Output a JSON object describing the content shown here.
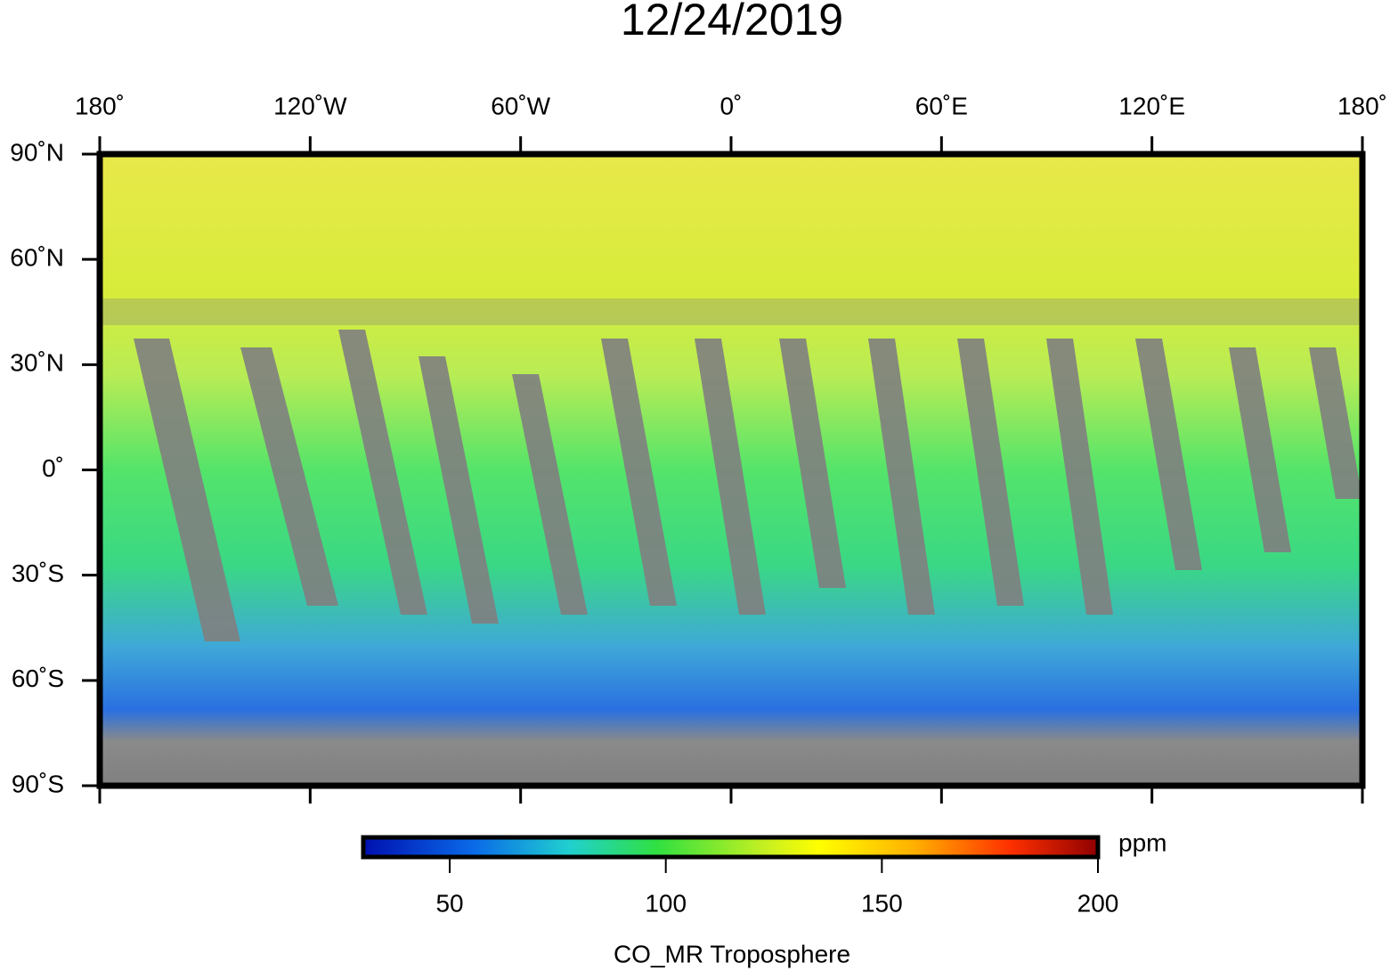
{
  "title": "12/24/2019",
  "map": {
    "xlim": [
      -180,
      180
    ],
    "ylim": [
      -90,
      90
    ],
    "xticks": [
      {
        "value": -180,
        "label": "180˚"
      },
      {
        "value": -120,
        "label": "120˚W"
      },
      {
        "value": -60,
        "label": "60˚W"
      },
      {
        "value": 0,
        "label": "0˚"
      },
      {
        "value": 60,
        "label": "60˚E"
      },
      {
        "value": 120,
        "label": "120˚E"
      },
      {
        "value": 180,
        "label": "180˚"
      }
    ],
    "yticks": [
      {
        "value": 90,
        "label": "90˚N"
      },
      {
        "value": 60,
        "label": "60˚N"
      },
      {
        "value": 30,
        "label": "30˚N"
      },
      {
        "value": 0,
        "label": "0˚"
      },
      {
        "value": -30,
        "label": "30˚S"
      },
      {
        "value": -60,
        "label": "60˚S"
      },
      {
        "value": -90,
        "label": "90˚S"
      }
    ]
  },
  "colorbar": {
    "lim": [
      30,
      200
    ],
    "ticks": [
      50,
      100,
      150,
      200
    ],
    "unit": "ppm",
    "label": "CO_MR Troposphere"
  }
}
